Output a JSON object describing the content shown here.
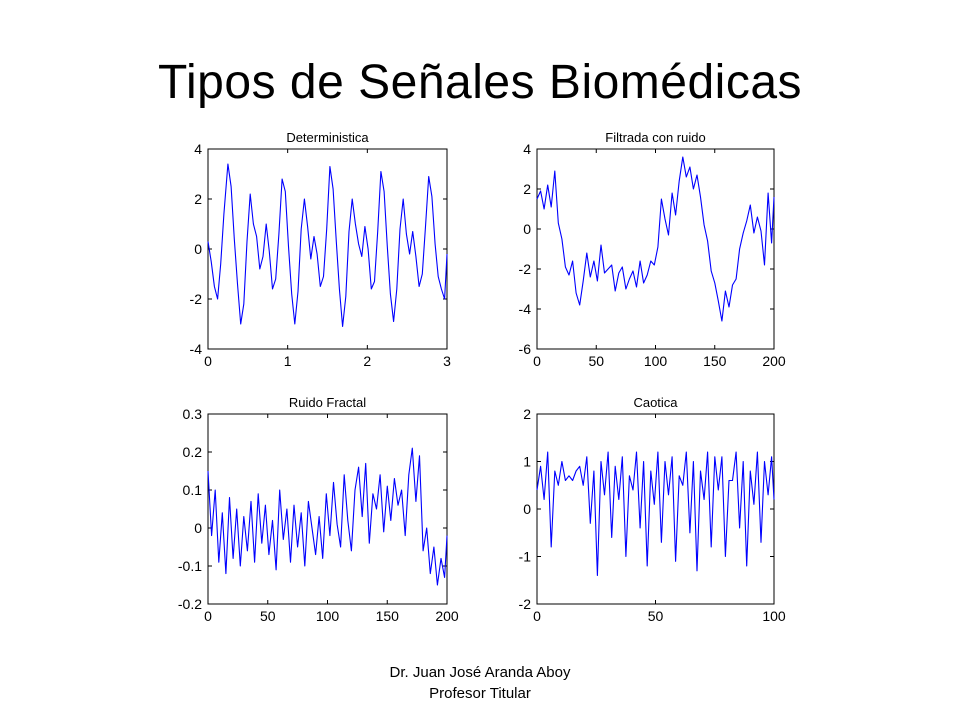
{
  "slide": {
    "title": "Tipos de Señales Biomédicas",
    "author": "Dr. Juan José Aranda Aboy",
    "position": "Profesor Titular"
  },
  "colors": {
    "line": "#0000ff",
    "axes": "#000000",
    "background": "#ffffff"
  },
  "chart_data": [
    {
      "type": "line",
      "title": "Deterministica",
      "xlabel": "",
      "ylabel": "",
      "xlim": [
        0,
        3
      ],
      "ylim": [
        -4,
        4
      ],
      "xticks": [
        0,
        1,
        2,
        3
      ],
      "yticks": [
        -4,
        -2,
        0,
        2,
        4
      ],
      "grid": false,
      "series": [
        {
          "x": [
            0,
            0.04,
            0.08,
            0.12,
            0.16,
            0.2,
            0.25,
            0.29,
            0.33,
            0.37,
            0.41,
            0.45,
            0.49,
            0.53,
            0.57,
            0.61,
            0.65,
            0.69,
            0.73,
            0.77,
            0.81,
            0.85,
            0.89,
            0.93,
            0.97,
            1.01,
            1.05,
            1.09,
            1.13,
            1.17,
            1.21,
            1.25,
            1.29,
            1.33,
            1.37,
            1.41,
            1.45,
            1.49,
            1.53,
            1.57,
            1.61,
            1.65,
            1.69,
            1.73,
            1.77,
            1.81,
            1.85,
            1.89,
            1.93,
            1.97,
            2.01,
            2.05,
            2.09,
            2.13,
            2.17,
            2.21,
            2.25,
            2.29,
            2.33,
            2.37,
            2.41,
            2.45,
            2.49,
            2.53,
            2.57,
            2.61,
            2.65,
            2.69,
            2.73,
            2.77,
            2.81,
            2.85,
            2.89,
            2.93,
            2.97,
            3
          ],
          "y": [
            0.3,
            -0.5,
            -1.5,
            -2,
            -0.6,
            1.4,
            3.4,
            2.5,
            0.4,
            -1.4,
            -3,
            -2.2,
            0.3,
            2.2,
            1,
            0.5,
            -0.8,
            -0.3,
            1,
            -0.1,
            -1.6,
            -1.2,
            0.6,
            2.8,
            2.3,
            0.1,
            -1.8,
            -3,
            -1.7,
            0.8,
            2,
            0.9,
            -0.4,
            0.5,
            -0.2,
            -1.5,
            -1.1,
            0.8,
            3.3,
            2.4,
            0.3,
            -1.6,
            -3.1,
            -1.9,
            0.7,
            2,
            1,
            0.2,
            -0.3,
            0.9,
            0,
            -1.6,
            -1.3,
            0.7,
            3.1,
            2.3,
            0.1,
            -1.8,
            -2.9,
            -1.6,
            0.8,
            2,
            0.6,
            -0.2,
            0.7,
            -0.3,
            -1.5,
            -1,
            0.9,
            2.9,
            2.1,
            0.2,
            -1.1,
            -1.6,
            -2,
            -0.2
          ]
        }
      ]
    },
    {
      "type": "line",
      "title": "Filtrada con ruido",
      "xlabel": "",
      "ylabel": "",
      "xlim": [
        0,
        200
      ],
      "ylim": [
        -6,
        4
      ],
      "xticks": [
        0,
        50,
        100,
        150,
        200
      ],
      "yticks": [
        -6,
        -4,
        -2,
        0,
        2,
        4
      ],
      "grid": false,
      "series": [
        {
          "x": [
            0,
            3,
            6,
            9,
            12,
            15,
            18,
            21,
            24,
            27,
            30,
            33,
            36,
            39,
            42,
            45,
            48,
            51,
            54,
            57,
            60,
            63,
            66,
            69,
            72,
            75,
            78,
            81,
            84,
            87,
            90,
            93,
            96,
            99,
            102,
            105,
            108,
            111,
            114,
            117,
            120,
            123,
            126,
            129,
            132,
            135,
            138,
            141,
            144,
            147,
            150,
            153,
            156,
            159,
            162,
            165,
            168,
            171,
            174,
            177,
            180,
            183,
            186,
            189,
            192,
            195,
            198,
            200
          ],
          "y": [
            1.5,
            1.9,
            1,
            2.2,
            1.1,
            2.9,
            0.3,
            -0.5,
            -1.9,
            -2.3,
            -1.6,
            -3.2,
            -3.8,
            -2.6,
            -1.2,
            -2.4,
            -1.6,
            -2.6,
            -0.8,
            -2.2,
            -2,
            -1.8,
            -3.1,
            -2.2,
            -1.9,
            -3,
            -2.5,
            -2.1,
            -2.9,
            -1.6,
            -2.7,
            -2.3,
            -1.6,
            -1.8,
            -0.9,
            1.5,
            0.5,
            -0.3,
            1.8,
            0.7,
            2.4,
            3.6,
            2.6,
            3.1,
            2,
            2.7,
            1.6,
            0.2,
            -0.6,
            -2.1,
            -2.7,
            -3.6,
            -4.6,
            -3.1,
            -3.9,
            -2.8,
            -2.5,
            -1,
            -0.2,
            0.4,
            1.2,
            -0.2,
            0.6,
            -0.1,
            -1.8,
            1.8,
            -0.7,
            1.6
          ]
        }
      ]
    },
    {
      "type": "line",
      "title": "Ruido Fractal",
      "xlabel": "",
      "ylabel": "",
      "xlim": [
        0,
        200
      ],
      "ylim": [
        -0.2,
        0.3
      ],
      "xticks": [
        0,
        50,
        100,
        150,
        200
      ],
      "yticks": [
        -0.2,
        -0.1,
        0,
        0.1,
        0.2,
        0.3
      ],
      "grid": false,
      "series": [
        {
          "x": [
            0,
            3,
            6,
            9,
            12,
            15,
            18,
            21,
            24,
            27,
            30,
            33,
            36,
            39,
            42,
            45,
            48,
            51,
            54,
            57,
            60,
            63,
            66,
            69,
            72,
            75,
            78,
            81,
            84,
            87,
            90,
            93,
            96,
            99,
            102,
            105,
            108,
            111,
            114,
            117,
            120,
            123,
            126,
            129,
            132,
            135,
            138,
            141,
            144,
            147,
            150,
            153,
            156,
            159,
            162,
            165,
            168,
            171,
            174,
            177,
            180,
            183,
            186,
            189,
            192,
            195,
            198,
            200
          ],
          "y": [
            0.15,
            -0.02,
            0.1,
            -0.09,
            0.04,
            -0.12,
            0.08,
            -0.08,
            0.05,
            -0.1,
            0.03,
            -0.06,
            0.07,
            -0.09,
            0.09,
            -0.04,
            0.06,
            -0.07,
            0.02,
            -0.11,
            0.1,
            -0.03,
            0.05,
            -0.09,
            0.06,
            -0.05,
            0.04,
            -0.1,
            0.07,
            0,
            -0.07,
            0.03,
            -0.08,
            0.09,
            -0.02,
            0.12,
            0.01,
            -0.05,
            0.14,
            0.02,
            -0.06,
            0.1,
            0.16,
            0.03,
            0.17,
            -0.04,
            0.09,
            0.05,
            0.14,
            -0.01,
            0.11,
            0.02,
            0.13,
            0.06,
            0.1,
            -0.02,
            0.14,
            0.21,
            0.07,
            0.19,
            -0.06,
            0,
            -0.12,
            -0.05,
            -0.15,
            -0.08,
            -0.13,
            -0.02
          ]
        }
      ]
    },
    {
      "type": "line",
      "title": "Caotica",
      "xlabel": "",
      "ylabel": "",
      "xlim": [
        0,
        100
      ],
      "ylim": [
        -2,
        2
      ],
      "xticks": [
        0,
        50,
        100
      ],
      "yticks": [
        -2,
        -1,
        0,
        1,
        2
      ],
      "grid": false,
      "series": [
        {
          "x": [
            0,
            1.5,
            3,
            4.5,
            6,
            7.5,
            9,
            10.5,
            12,
            13.5,
            15,
            16.5,
            18,
            19.5,
            21,
            22.5,
            24,
            25.5,
            27,
            28.5,
            30,
            31.5,
            33,
            34.5,
            36,
            37.5,
            39,
            40.5,
            42,
            43.5,
            45,
            46.5,
            48,
            49.5,
            51,
            52.5,
            54,
            55.5,
            57,
            58.5,
            60,
            61.5,
            63,
            64.5,
            66,
            67.5,
            69,
            70.5,
            72,
            73.5,
            75,
            76.5,
            78,
            79.5,
            81,
            82.5,
            84,
            85.5,
            87,
            88.5,
            90,
            91.5,
            93,
            94.5,
            96,
            97.5,
            99,
            100
          ],
          "y": [
            0.4,
            0.9,
            0.2,
            1.2,
            -0.8,
            0.8,
            0.5,
            1,
            0.6,
            0.7,
            0.6,
            0.8,
            0.9,
            0.5,
            1.1,
            -0.3,
            0.8,
            -1.4,
            1,
            0.3,
            1.2,
            -0.6,
            0.9,
            0.2,
            1.1,
            -1,
            0.7,
            0.4,
            1.2,
            -0.4,
            1,
            -1.2,
            0.8,
            0.1,
            1.2,
            -0.7,
            1,
            0.3,
            1.1,
            -1.1,
            0.7,
            0.5,
            1.2,
            -0.5,
            1,
            -1.3,
            0.8,
            0.2,
            1.2,
            -0.8,
            1.1,
            0.4,
            1.1,
            -1,
            0.6,
            0.6,
            1.2,
            -0.4,
            1,
            -1.2,
            0.8,
            0.1,
            1.2,
            -0.7,
            1,
            0.3,
            1.1,
            0.2
          ]
        }
      ]
    }
  ]
}
